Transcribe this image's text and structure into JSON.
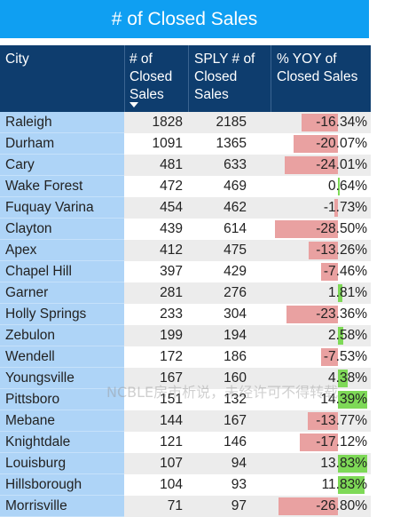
{
  "title": "# of Closed Sales",
  "columns": {
    "city": "City",
    "closed_line1": "# of",
    "closed_line2": "Closed",
    "closed_line3": "Sales",
    "sply_line1": "SPLY # of",
    "sply_line2": "Closed",
    "sply_line3": "Sales",
    "yoy_line1": "% YOY of",
    "yoy_line2": "Closed Sales"
  },
  "sort_indicator": "sort-descending-icon",
  "colors": {
    "title_bg": "#0f9ff2",
    "header_bg": "#0e3d6e",
    "city_bg": "#aed4f7",
    "negative_bar": "#e9a1a1",
    "positive_bar": "#7ed957"
  },
  "rows": [
    {
      "city": "Raleigh",
      "closed": "1828",
      "sply": "2185",
      "yoy": "-16.34%",
      "yoy_value": -16.34
    },
    {
      "city": "Durham",
      "closed": "1091",
      "sply": "1365",
      "yoy": "-20.07%",
      "yoy_value": -20.07
    },
    {
      "city": "Cary",
      "closed": "481",
      "sply": "633",
      "yoy": "-24.01%",
      "yoy_value": -24.01
    },
    {
      "city": "Wake Forest",
      "closed": "472",
      "sply": "469",
      "yoy": "0.64%",
      "yoy_value": 0.64
    },
    {
      "city": "Fuquay Varina",
      "closed": "454",
      "sply": "462",
      "yoy": "-1.73%",
      "yoy_value": -1.73
    },
    {
      "city": "Clayton",
      "closed": "439",
      "sply": "614",
      "yoy": "-28.50%",
      "yoy_value": -28.5
    },
    {
      "city": "Apex",
      "closed": "412",
      "sply": "475",
      "yoy": "-13.26%",
      "yoy_value": -13.26
    },
    {
      "city": "Chapel Hill",
      "closed": "397",
      "sply": "429",
      "yoy": "-7.46%",
      "yoy_value": -7.46
    },
    {
      "city": "Garner",
      "closed": "281",
      "sply": "276",
      "yoy": "1.81%",
      "yoy_value": 1.81
    },
    {
      "city": "Holly Springs",
      "closed": "233",
      "sply": "304",
      "yoy": "-23.36%",
      "yoy_value": -23.36
    },
    {
      "city": "Zebulon",
      "closed": "199",
      "sply": "194",
      "yoy": "2.58%",
      "yoy_value": 2.58
    },
    {
      "city": "Wendell",
      "closed": "172",
      "sply": "186",
      "yoy": "-7.53%",
      "yoy_value": -7.53
    },
    {
      "city": "Youngsville",
      "closed": "167",
      "sply": "160",
      "yoy": "4.38%",
      "yoy_value": 4.38
    },
    {
      "city": "Pittsboro",
      "closed": "151",
      "sply": "132",
      "yoy": "14.39%",
      "yoy_value": 14.39
    },
    {
      "city": "Mebane",
      "closed": "144",
      "sply": "167",
      "yoy": "-13.77%",
      "yoy_value": -13.77
    },
    {
      "city": "Knightdale",
      "closed": "121",
      "sply": "146",
      "yoy": "-17.12%",
      "yoy_value": -17.12
    },
    {
      "city": "Louisburg",
      "closed": "107",
      "sply": "94",
      "yoy": "13.83%",
      "yoy_value": 13.83
    },
    {
      "city": "Hillsborough",
      "closed": "104",
      "sply": "93",
      "yoy": "11.83%",
      "yoy_value": 11.83
    },
    {
      "city": "Morrisville",
      "closed": "71",
      "sply": "97",
      "yoy": "-26.80%",
      "yoy_value": -26.8
    }
  ],
  "watermark": "NCBLE房市析说，未经许可不得转载"
}
